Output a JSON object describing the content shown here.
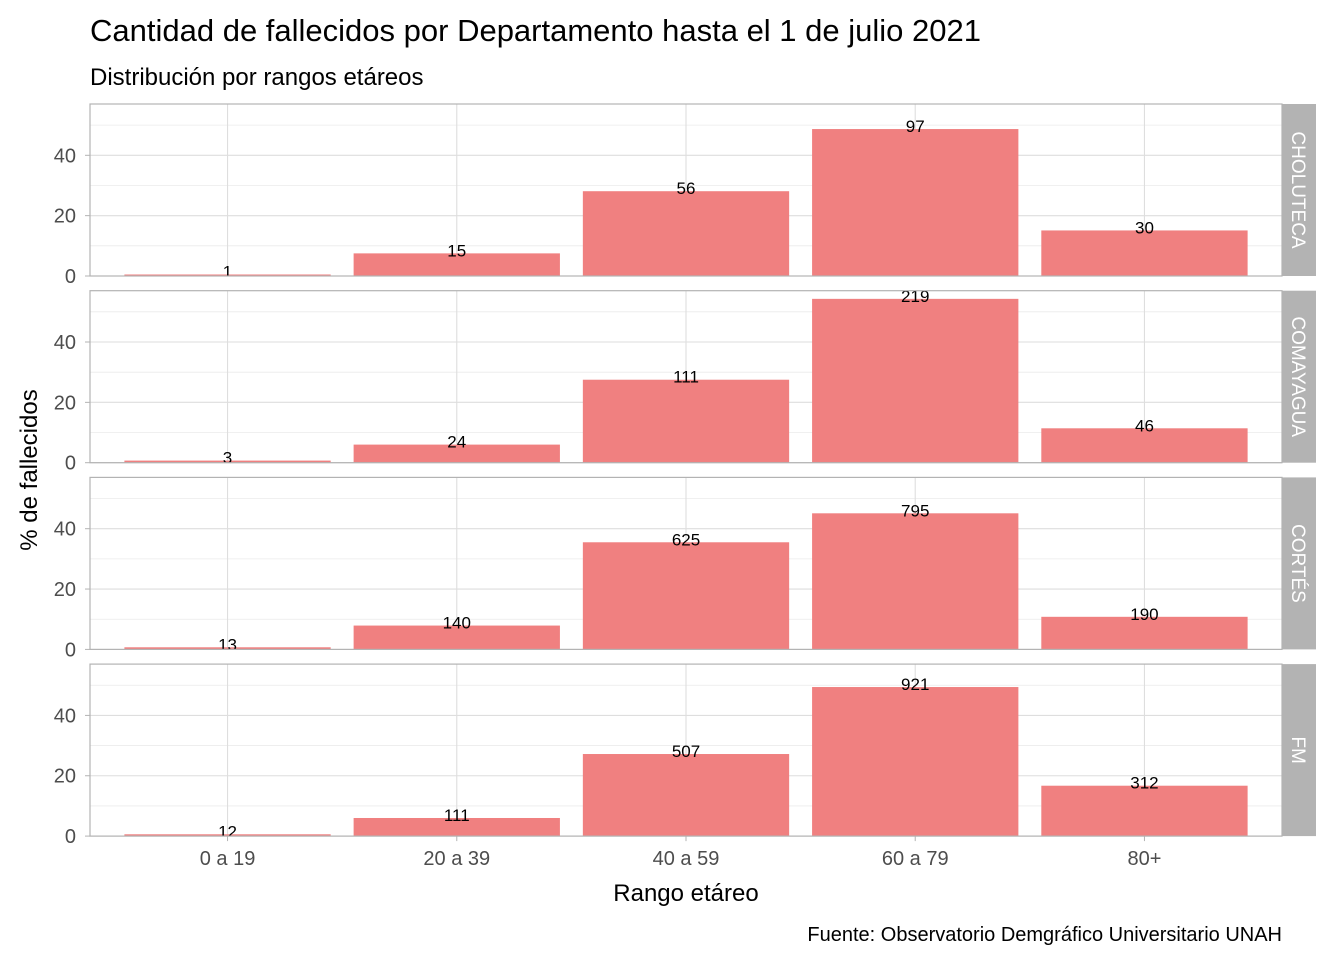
{
  "chart_data": {
    "type": "bar",
    "title": "Cantidad de fallecidos por Departamento hasta el 1 de julio 2021",
    "subtitle": "Distribución por rangos etáreos",
    "xlabel": "Rango etáreo",
    "ylabel": "% de fallecidos",
    "caption": "Fuente: Observatorio Demgráfico Universitario UNAH",
    "categories": [
      "0 a 19",
      "20 a 39",
      "40 a 59",
      "60 a 79",
      "80+"
    ],
    "yticks": [
      0,
      20,
      40
    ],
    "ylim": [
      0,
      57
    ],
    "grid": true,
    "colors": {
      "bar": "#F08080",
      "strip": "#B3B3B3",
      "strip_text": "#FFFFFF"
    },
    "facets": [
      {
        "name": "CHOLUTECA",
        "counts": [
          1,
          15,
          56,
          97,
          30
        ],
        "values": [
          0.5,
          7.5,
          28.1,
          48.7,
          15.1
        ]
      },
      {
        "name": "COMAYAGUA",
        "counts": [
          3,
          24,
          111,
          219,
          46
        ],
        "values": [
          0.7,
          6.0,
          27.5,
          54.3,
          11.4
        ]
      },
      {
        "name": "CORTÉS",
        "counts": [
          13,
          140,
          625,
          795,
          190
        ],
        "values": [
          0.7,
          7.9,
          35.5,
          45.1,
          10.8
        ]
      },
      {
        "name": "FM",
        "counts": [
          12,
          111,
          507,
          921,
          312
        ],
        "values": [
          0.6,
          6.0,
          27.2,
          49.4,
          16.7
        ]
      }
    ]
  }
}
